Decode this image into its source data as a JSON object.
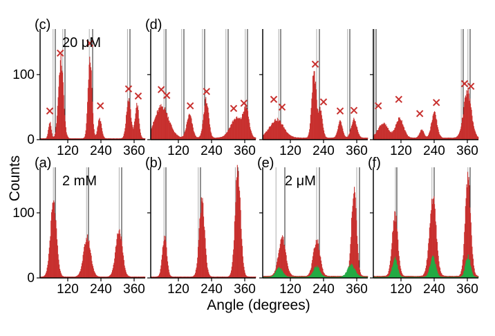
{
  "figure": {
    "ylabel": "Counts",
    "xlabel": "Angle (degrees)",
    "colors": {
      "histogram": "#c8302e",
      "overlay": "#22aa44",
      "marker": "#c8302e",
      "axis": "#000000",
      "guide": "#888888"
    }
  },
  "chart_data": [
    {
      "type": "bar",
      "panel": "(c)",
      "annotation": "20 μM",
      "xlim": [
        20,
        400
      ],
      "ylim": [
        0,
        170
      ],
      "xticks": [
        120,
        240,
        360
      ],
      "yticks": [
        0,
        100
      ],
      "show_yticklabels": true,
      "show_xticklabels": true,
      "guides_dark": [
        75,
        110,
        210,
        345
      ],
      "guides_light": [
        67,
        102,
        198,
        336
      ],
      "peaks": [
        {
          "center": 55,
          "width": 5,
          "height": 25
        },
        {
          "center": 95,
          "width": 9,
          "height": 120
        },
        {
          "center": 200,
          "width": 7,
          "height": 125
        },
        {
          "center": 235,
          "width": 7,
          "height": 30
        },
        {
          "center": 340,
          "width": 8,
          "height": 62
        },
        {
          "center": 370,
          "width": 7,
          "height": 52
        }
      ],
      "baseline": 2,
      "markers": [
        {
          "x": 55,
          "y": 44
        },
        {
          "x": 93,
          "y": 133
        },
        {
          "x": 200,
          "y": 148
        },
        {
          "x": 238,
          "y": 52
        },
        {
          "x": 340,
          "y": 78
        },
        {
          "x": 375,
          "y": 67
        }
      ]
    },
    {
      "type": "bar",
      "panel": "(d)",
      "annotation": "",
      "xlim": [
        20,
        400
      ],
      "ylim": [
        0,
        170
      ],
      "xticks": [
        120,
        240,
        360
      ],
      "yticks": [
        0,
        100
      ],
      "show_yticklabels": false,
      "show_xticklabels": true,
      "guides_dark": [
        75,
        140,
        215,
        300,
        370
      ],
      "guides_light": [
        68,
        132,
        207,
        292,
        362
      ],
      "peaks": [
        {
          "center": 60,
          "width": 25,
          "height": 48
        },
        {
          "center": 160,
          "width": 10,
          "height": 35
        },
        {
          "center": 220,
          "width": 9,
          "height": 58
        },
        {
          "center": 330,
          "width": 22,
          "height": 30
        },
        {
          "center": 365,
          "width": 10,
          "height": 40
        }
      ],
      "baseline": 3,
      "markers": [
        {
          "x": 58,
          "y": 77
        },
        {
          "x": 78,
          "y": 68
        },
        {
          "x": 163,
          "y": 52
        },
        {
          "x": 222,
          "y": 74
        },
        {
          "x": 320,
          "y": 48
        },
        {
          "x": 357,
          "y": 56
        }
      ]
    },
    {
      "type": "bar",
      "panel": "",
      "annotation": "",
      "xlim": [
        20,
        400
      ],
      "ylim": [
        0,
        170
      ],
      "xticks": [
        120,
        240,
        360
      ],
      "yticks": [
        0,
        100
      ],
      "show_yticklabels": false,
      "show_xticklabels": true,
      "guides_dark": [
        85,
        225,
        335
      ],
      "guides_light": [
        78,
        215,
        327
      ],
      "peaks": [
        {
          "center": 70,
          "width": 25,
          "height": 28
        },
        {
          "center": 205,
          "width": 8,
          "height": 100
        },
        {
          "center": 228,
          "width": 8,
          "height": 42
        },
        {
          "center": 300,
          "width": 8,
          "height": 25
        },
        {
          "center": 350,
          "width": 10,
          "height": 28
        }
      ],
      "baseline": 3,
      "markers": [
        {
          "x": 60,
          "y": 62
        },
        {
          "x": 90,
          "y": 50
        },
        {
          "x": 210,
          "y": 116
        },
        {
          "x": 240,
          "y": 58
        },
        {
          "x": 300,
          "y": 44
        },
        {
          "x": 350,
          "y": 45
        }
      ]
    },
    {
      "type": "bar",
      "panel": "",
      "annotation": "",
      "xlim": [
        20,
        400
      ],
      "ylim": [
        0,
        170
      ],
      "xticks": [
        120,
        240,
        360
      ],
      "yticks": [
        0,
        100
      ],
      "show_yticklabels": false,
      "show_xticklabels": true,
      "guides_dark": [
        30,
        345,
        370
      ],
      "guides_light": [
        24,
        338,
        362
      ],
      "peaks": [
        {
          "center": 55,
          "width": 18,
          "height": 22
        },
        {
          "center": 115,
          "width": 14,
          "height": 30
        },
        {
          "center": 195,
          "width": 8,
          "height": 12
        },
        {
          "center": 240,
          "width": 10,
          "height": 38
        },
        {
          "center": 360,
          "width": 14,
          "height": 70
        }
      ],
      "baseline": 3,
      "markers": [
        {
          "x": 38,
          "y": 52
        },
        {
          "x": 112,
          "y": 62
        },
        {
          "x": 188,
          "y": 40
        },
        {
          "x": 248,
          "y": 57
        },
        {
          "x": 350,
          "y": 86
        },
        {
          "x": 373,
          "y": 82
        }
      ]
    },
    {
      "type": "bar",
      "panel": "(a)",
      "annotation": "2 mM",
      "xlim": [
        20,
        400
      ],
      "ylim": [
        0,
        170
      ],
      "xticks": [
        120,
        240,
        360
      ],
      "yticks": [
        0,
        100
      ],
      "show_yticklabels": true,
      "show_xticklabels": true,
      "guides_dark": [
        75,
        195,
        315
      ],
      "guides_light": [
        68,
        188,
        306
      ],
      "peaks": [
        {
          "center": 68,
          "width": 11,
          "height": 112
        },
        {
          "center": 190,
          "width": 13,
          "height": 60
        },
        {
          "center": 305,
          "width": 12,
          "height": 72
        }
      ],
      "baseline": 2,
      "markers": []
    },
    {
      "type": "bar",
      "panel": "(b)",
      "annotation": "",
      "xlim": [
        20,
        400
      ],
      "ylim": [
        0,
        170
      ],
      "xticks": [
        120,
        240,
        360
      ],
      "yticks": [
        0,
        100
      ],
      "show_yticklabels": false,
      "show_xticklabels": true,
      "guides_dark": [
        75,
        200,
        335
      ],
      "guides_light": [
        68,
        192,
        326
      ],
      "peaks": [
        {
          "center": 70,
          "width": 8,
          "height": 62
        },
        {
          "center": 205,
          "width": 10,
          "height": 114
        },
        {
          "center": 335,
          "width": 10,
          "height": 163
        }
      ],
      "baseline": 2,
      "markers": []
    },
    {
      "type": "bar",
      "panel": "(e)",
      "annotation": "2 μM",
      "xlim": [
        20,
        400
      ],
      "ylim": [
        0,
        170
      ],
      "xticks": [
        120,
        240,
        360
      ],
      "yticks": [
        0,
        100
      ],
      "show_yticklabels": false,
      "show_xticklabels": true,
      "guides_dark": [
        100,
        225,
        370
      ],
      "guides_light": [
        68,
        215,
        360
      ],
      "peaks": [
        {
          "center": 90,
          "width": 13,
          "height": 60
        },
        {
          "center": 215,
          "width": 12,
          "height": 55
        },
        {
          "center": 350,
          "width": 9,
          "height": 135
        }
      ],
      "baseline": 3,
      "overlay_peaks": [
        {
          "center": 80,
          "width": 12,
          "height": 14
        },
        {
          "center": 215,
          "width": 12,
          "height": 16
        },
        {
          "center": 340,
          "width": 14,
          "height": 18
        }
      ],
      "markers": []
    },
    {
      "type": "bar",
      "panel": "(f)",
      "annotation": "",
      "xlim": [
        20,
        400
      ],
      "ylim": [
        0,
        170
      ],
      "xticks": [
        120,
        240,
        360
      ],
      "yticks": [
        0,
        100
      ],
      "show_yticklabels": false,
      "show_xticklabels": true,
      "guides_dark": [
        105,
        240,
        370
      ],
      "guides_light": [
        100,
        232,
        362
      ],
      "peaks": [
        {
          "center": 98,
          "width": 10,
          "height": 96
        },
        {
          "center": 235,
          "width": 12,
          "height": 120
        },
        {
          "center": 362,
          "width": 10,
          "height": 148
        }
      ],
      "baseline": 3,
      "overlay_peaks": [
        {
          "center": 98,
          "width": 9,
          "height": 28
        },
        {
          "center": 235,
          "width": 10,
          "height": 30
        },
        {
          "center": 362,
          "width": 9,
          "height": 32
        }
      ],
      "markers": []
    }
  ]
}
